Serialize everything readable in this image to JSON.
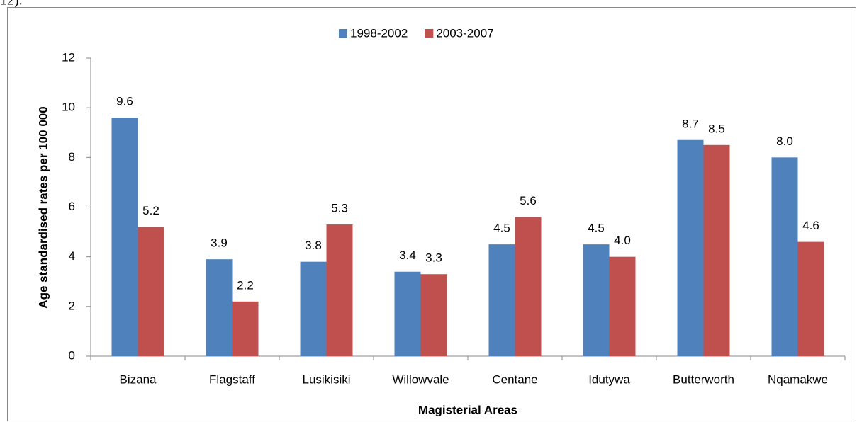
{
  "caption_fragment": "12).",
  "chart_data": {
    "type": "bar",
    "y_label": "Age standardised rates per 100 000",
    "x_label": "Magisterial Areas",
    "categories": [
      "Bizana",
      "Flagstaff",
      "Lusikisiki",
      "Willowvale",
      "Centane",
      "Idutywa",
      "Butterworth",
      "Nqamakwe"
    ],
    "series": [
      {
        "name": "1998-2002",
        "color": "#4f81bd",
        "values": [
          9.6,
          3.9,
          3.8,
          3.4,
          4.5,
          4.5,
          8.7,
          8.0
        ],
        "value_labels": [
          "9.6",
          "3.9",
          "3.8",
          "3.4",
          "4.5",
          "4.5",
          "8.7",
          "8.0"
        ]
      },
      {
        "name": "2003-2007",
        "color": "#c0504d",
        "values": [
          5.2,
          2.2,
          5.3,
          3.3,
          5.6,
          4.0,
          8.5,
          4.6
        ],
        "value_labels": [
          "5.2",
          "2.2",
          "5.3",
          "3.3",
          "5.6",
          "4.0",
          "8.5",
          "4.6"
        ]
      }
    ],
    "ylim": [
      0,
      12
    ],
    "yticks": [
      0,
      2,
      4,
      6,
      8,
      10,
      12
    ],
    "grid": false,
    "legend": "top"
  }
}
